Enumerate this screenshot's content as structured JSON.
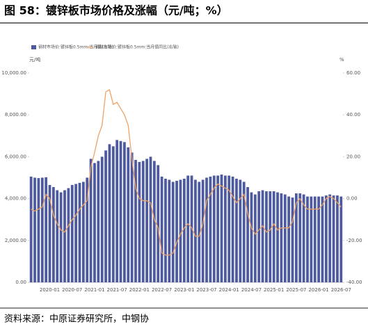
{
  "title": "图 58：镀锌板市场价格及涨幅（元/吨；%）",
  "source": "资料来源：中原证券研究所，中钢协",
  "chart_data": {
    "type": "bar",
    "y_unit": "元/吨",
    "y2_unit": "%",
    "categories": [
      null,
      null,
      null,
      null,
      null,
      "2020-01",
      null,
      null,
      null,
      null,
      null,
      "2020-07",
      null,
      null,
      null,
      null,
      null,
      "2021-01",
      null,
      null,
      null,
      null,
      null,
      "2021-07",
      null,
      null,
      null,
      null,
      null,
      "2022-01",
      null,
      null,
      null,
      null,
      null,
      "2022-07",
      null,
      null,
      null,
      null,
      null,
      "2023-01",
      null,
      null,
      null,
      null,
      null,
      "2023-07",
      null,
      null,
      null,
      null,
      null,
      "2024-01",
      null,
      null,
      null,
      null,
      null,
      "2024-07",
      null,
      null,
      null,
      null,
      null,
      "2025-01",
      null,
      null,
      null,
      null,
      null,
      "2025-07",
      null,
      null,
      null,
      null,
      null,
      "2026-01",
      null,
      null,
      null,
      null,
      null,
      "2026-07"
    ],
    "series": [
      {
        "name": "钢材市场价:镀锌板0.5mm:当月值(左轴)",
        "color": "#4e5a9f",
        "values": [
          5050,
          5000,
          4980,
          5000,
          5020,
          4650,
          4550,
          4400,
          4300,
          4400,
          4500,
          4650,
          4700,
          4750,
          4800,
          5000,
          5900,
          5700,
          5800,
          6000,
          6300,
          6600,
          6500,
          6800,
          6750,
          6700,
          6450,
          6200,
          5850,
          5750,
          5800,
          5900,
          6000,
          5800,
          5600,
          5050,
          4950,
          4900,
          4800,
          4850,
          4900,
          4950,
          5100,
          5100,
          4900,
          4800,
          4900,
          5000,
          5050,
          5100,
          5100,
          5150,
          5100,
          5100,
          5050,
          4950,
          4900,
          4800,
          4550,
          4300,
          4200,
          4350,
          4400,
          4350,
          4350,
          4350,
          4300,
          4250,
          4200,
          4100,
          4050,
          4250,
          4250,
          4200,
          4100,
          4100,
          4100,
          4100,
          4100,
          4150,
          4200,
          4150,
          4150,
          4100
        ]
      },
      {
        "name": "钢材市场价:镀锌板0.5mm:当月值同比(右轴)",
        "color": "#f0a263",
        "type": "line",
        "axis": "y2",
        "values": [
          -5,
          -6,
          -5,
          -4,
          2,
          0,
          -8,
          -12,
          -15,
          -16,
          -13,
          -10,
          -8,
          -5,
          -3,
          -1,
          15,
          22,
          30,
          35,
          51,
          52,
          45,
          46,
          43,
          40,
          35,
          19,
          5,
          0,
          -1,
          -1,
          -2,
          -10,
          -14,
          -26,
          -27,
          -27,
          -26,
          -21,
          -17,
          -14,
          -12,
          -14,
          -18,
          -18,
          -12,
          -1,
          2,
          5,
          7,
          6,
          5,
          4,
          1,
          -2,
          0,
          2,
          -7,
          -14,
          -17,
          -15,
          -13,
          -16,
          -15,
          -12,
          -15,
          -14,
          -14,
          -14,
          -11,
          -2,
          0,
          -3,
          -5,
          -5,
          -5,
          -5,
          -3,
          0,
          1,
          0,
          -2,
          -4
        ]
      }
    ],
    "ylim": [
      0,
      10000
    ],
    "yticks": [
      {
        "value": 0,
        "label": "0.00"
      },
      {
        "value": 2000,
        "label": "2,000.00"
      },
      {
        "value": 4000,
        "label": "4,000.00"
      },
      {
        "value": 6000,
        "label": "6,000.00"
      },
      {
        "value": 8000,
        "label": "8,000.00"
      },
      {
        "value": 10000,
        "label": "10,000.00"
      }
    ],
    "y2lim": [
      -40,
      60
    ],
    "y2ticks": [
      {
        "value": -40,
        "label": "-40.00"
      },
      {
        "value": -20,
        "label": "-20.00"
      },
      {
        "value": 0,
        "label": "0.00"
      },
      {
        "value": 20,
        "label": "20.00"
      },
      {
        "value": 40,
        "label": "40.00"
      },
      {
        "value": 60,
        "label": "60.00"
      }
    ]
  }
}
